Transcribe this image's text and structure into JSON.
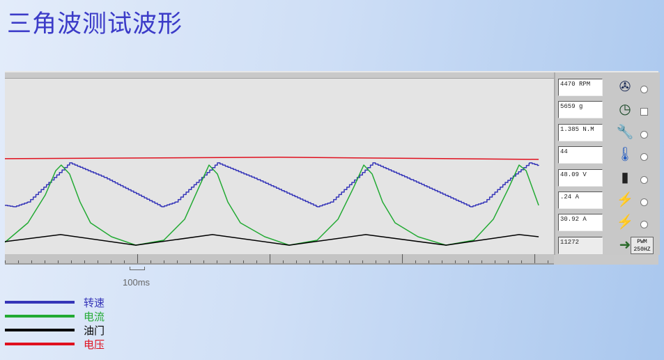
{
  "title": "三角波测试波形",
  "scale_label": "100ms",
  "readouts": [
    {
      "value": "4470 RPM",
      "icon": "fan-icon",
      "control": "radio"
    },
    {
      "value": "5659 g",
      "icon": "gauge-icon",
      "control": "checkbox"
    },
    {
      "value": "1.385 N.M",
      "icon": "wrench-icon",
      "control": "radio"
    },
    {
      "value": "44",
      "icon": "thermometer-icon",
      "control": "radio"
    },
    {
      "value": "48.09 V",
      "icon": "battery-icon",
      "control": "radio"
    },
    {
      "value": ".24 A",
      "icon": "car-battery-current-icon",
      "control": "radio"
    },
    {
      "value": "30.92 A",
      "icon": "car-battery-current-icon",
      "control": "radio"
    },
    {
      "value": "11272",
      "icon": "arrow-diamond-icon",
      "control": "none"
    }
  ],
  "pwm_button": {
    "line1": "PWM",
    "line2": "250HZ"
  },
  "legend": [
    {
      "label": "转速",
      "color": "#3535b8"
    },
    {
      "label": "电流",
      "color": "#22aa33"
    },
    {
      "label": "油门",
      "color": "#000000"
    },
    {
      "label": "电压",
      "color": "#e0101e"
    }
  ],
  "chart_data": {
    "type": "line",
    "xlabel": "",
    "ylabel": "",
    "x_unit": "ms",
    "xlim": [
      0,
      4147
    ],
    "ylim": [
      0,
      100
    ],
    "x_major_tick_ms": 1000,
    "x_minor_tick_ms": 100,
    "grid": false,
    "series": [
      {
        "name": "电压",
        "color": "#e0101e",
        "points": [
          [
            0,
            54.2
          ],
          [
            2068,
            55
          ],
          [
            4032,
            53.8
          ]
        ]
      },
      {
        "name": "转速",
        "color": "#3535b8",
        "step": true,
        "points": [
          [
            0,
            27.7
          ],
          [
            68,
            26.9
          ],
          [
            174,
            29.6
          ],
          [
            332,
            40.7
          ],
          [
            489,
            51.8
          ],
          [
            753,
            43.5
          ],
          [
            1184,
            26.9
          ],
          [
            1289,
            29.6
          ],
          [
            1447,
            40.7
          ],
          [
            1605,
            51.8
          ],
          [
            1911,
            42.3
          ],
          [
            2358,
            26.9
          ],
          [
            2463,
            29.6
          ],
          [
            2621,
            40.7
          ],
          [
            2779,
            51.8
          ],
          [
            3068,
            42.3
          ],
          [
            3516,
            26.9
          ],
          [
            3621,
            29.6
          ],
          [
            3779,
            40.7
          ],
          [
            3963,
            51.8
          ],
          [
            4032,
            50.2
          ]
        ]
      },
      {
        "name": "电流",
        "color": "#22aa33",
        "points": [
          [
            0,
            6.7
          ],
          [
            174,
            17.8
          ],
          [
            305,
            33.6
          ],
          [
            384,
            47.4
          ],
          [
            426,
            50.6
          ],
          [
            489,
            45.5
          ],
          [
            568,
            29.6
          ],
          [
            647,
            17.8
          ],
          [
            805,
            9.9
          ],
          [
            989,
            5.1
          ],
          [
            1200,
            7.9
          ],
          [
            1358,
            19.8
          ],
          [
            1463,
            37.5
          ],
          [
            1542,
            50.6
          ],
          [
            1605,
            45.5
          ],
          [
            1684,
            29.6
          ],
          [
            1779,
            17.8
          ],
          [
            1963,
            9.9
          ],
          [
            2147,
            5.1
          ],
          [
            2358,
            7.9
          ],
          [
            2516,
            19.8
          ],
          [
            2632,
            37.5
          ],
          [
            2711,
            50.6
          ],
          [
            2774,
            45.5
          ],
          [
            2853,
            29.6
          ],
          [
            2947,
            17.8
          ],
          [
            3121,
            9.9
          ],
          [
            3332,
            5.1
          ],
          [
            3542,
            7.9
          ],
          [
            3689,
            19.8
          ],
          [
            3805,
            37.5
          ],
          [
            3884,
            50.6
          ],
          [
            3937,
            47.4
          ],
          [
            4032,
            27.7
          ]
        ]
      },
      {
        "name": "油门",
        "color": "#000000",
        "points": [
          [
            0,
            7.1
          ],
          [
            421,
            11.1
          ],
          [
            989,
            5.1
          ],
          [
            1568,
            11.1
          ],
          [
            2147,
            5.1
          ],
          [
            2726,
            11.1
          ],
          [
            3332,
            5.1
          ],
          [
            3884,
            11.1
          ],
          [
            4032,
            9.9
          ]
        ]
      }
    ]
  }
}
